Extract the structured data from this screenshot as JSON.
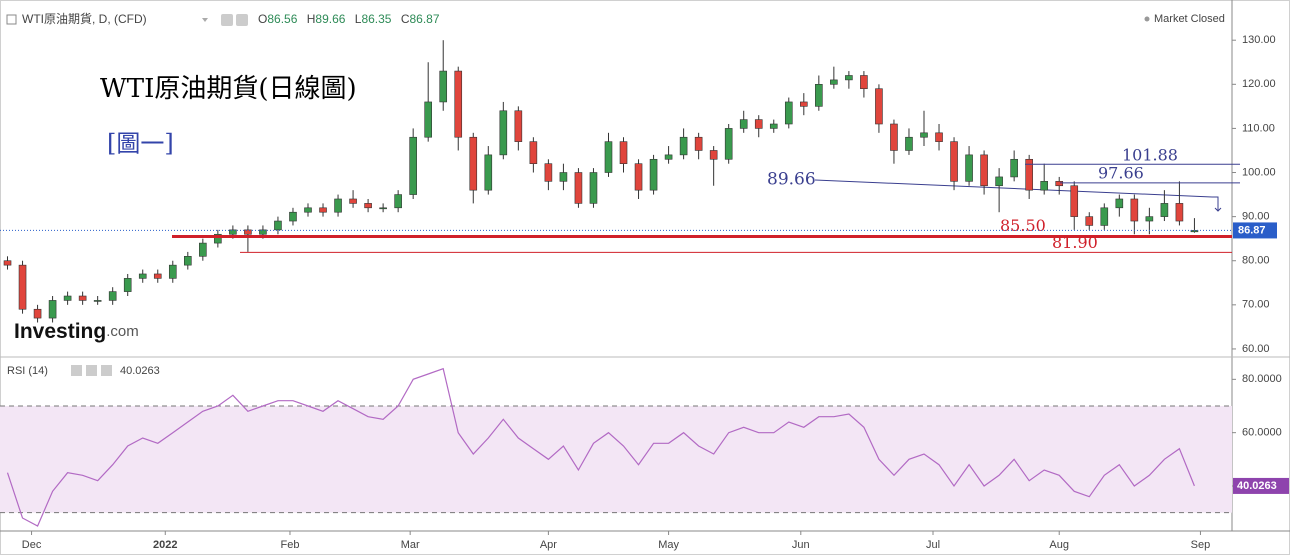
{
  "header": {
    "symbol": "WTI原油期貨, D, (CFD)",
    "ohlc_labels": [
      "O",
      "H",
      "L",
      "C"
    ],
    "status": "Market Closed"
  },
  "logo": {
    "name": "Investing",
    "suffix": ".com"
  },
  "chart_data": [
    {
      "type": "candlestick",
      "title": "WTI原油期貨(日線圖)",
      "subtitle": "[圖一]",
      "x": [
        0,
        1,
        2,
        3,
        4,
        5,
        6,
        7,
        8,
        9,
        10,
        11,
        12,
        13,
        14,
        15,
        16,
        17,
        18,
        19,
        20,
        21,
        22,
        23,
        24,
        25,
        26,
        27,
        28,
        29,
        30,
        31,
        32,
        33,
        34,
        35,
        36,
        37,
        38,
        39,
        40,
        41,
        42,
        43,
        44,
        45,
        46,
        47,
        48,
        49,
        50,
        51,
        52,
        53,
        54,
        55,
        56,
        57,
        58,
        59,
        60,
        61,
        62,
        63,
        64,
        65,
        66,
        67,
        68,
        69,
        70,
        71,
        72,
        73,
        74,
        75,
        76,
        77,
        78,
        79
      ],
      "open": [
        80,
        79,
        69,
        67,
        71,
        72,
        71,
        71,
        73,
        76,
        77,
        76,
        79,
        81,
        84,
        86,
        87,
        86,
        87,
        89,
        91,
        92,
        91,
        94,
        93,
        92,
        92,
        95,
        108,
        116,
        123,
        108,
        96,
        104,
        114,
        107,
        102,
        98,
        100,
        93,
        100,
        107,
        102,
        96,
        103,
        104,
        108,
        105,
        103,
        110,
        112,
        110,
        111,
        116,
        115,
        120,
        121,
        122,
        119,
        111,
        105,
        108,
        109,
        107,
        98,
        104,
        97,
        99,
        103,
        96,
        98,
        97,
        90,
        88,
        92,
        94,
        89,
        90,
        93,
        86.56
      ],
      "high": [
        81,
        80,
        70,
        72,
        73,
        73,
        72,
        74,
        77,
        78,
        78,
        80,
        82,
        85,
        87,
        88,
        88,
        88,
        90,
        92,
        93,
        93,
        95,
        96,
        94,
        93,
        96,
        110,
        125,
        130,
        124,
        109,
        106,
        116,
        115,
        108,
        103,
        102,
        101,
        101,
        109,
        108,
        103,
        104,
        106,
        110,
        109,
        106,
        111,
        114,
        113,
        112,
        117,
        118,
        122,
        124,
        123,
        123,
        120,
        112,
        110,
        114,
        111,
        108,
        106,
        105,
        101,
        105,
        104,
        102,
        99,
        98,
        91,
        93,
        95,
        95,
        92,
        96,
        98,
        89.66
      ],
      "low": [
        78,
        68,
        66,
        66,
        70,
        70,
        70,
        70,
        72,
        75,
        75,
        75,
        78,
        80,
        83,
        85,
        82,
        85,
        86,
        88,
        90,
        90,
        90,
        92,
        91,
        91,
        91,
        94,
        107,
        114,
        105,
        93,
        95,
        103,
        105,
        100,
        96,
        96,
        92,
        92,
        99,
        100,
        94,
        95,
        102,
        103,
        103,
        97,
        102,
        109,
        108,
        109,
        110,
        113,
        114,
        119,
        119,
        117,
        109,
        102,
        104,
        106,
        105,
        96,
        97,
        95,
        91,
        98,
        94,
        95,
        95,
        87,
        87,
        87,
        90,
        86,
        86,
        89,
        88,
        86.35
      ],
      "close": [
        79,
        69,
        67,
        71,
        72,
        71,
        71,
        73,
        76,
        77,
        76,
        79,
        81,
        84,
        86,
        87,
        86,
        87,
        89,
        91,
        92,
        91,
        94,
        93,
        92,
        92,
        95,
        108,
        116,
        123,
        108,
        96,
        104,
        114,
        107,
        102,
        98,
        100,
        93,
        100,
        107,
        102,
        96,
        103,
        104,
        108,
        105,
        103,
        110,
        112,
        110,
        111,
        116,
        115,
        120,
        121,
        122,
        119,
        111,
        105,
        108,
        109,
        107,
        98,
        104,
        97,
        99,
        103,
        96,
        98,
        97,
        90,
        88,
        92,
        94,
        89,
        90,
        93,
        89,
        86.87
      ],
      "up_color": "#3a9a4e",
      "down_color": "#e0453c",
      "xlim": [
        -0.5,
        81.5
      ],
      "xticks": [
        {
          "value": 1.6,
          "label": "Dec"
        },
        {
          "value": 10.5,
          "label": "2022"
        },
        {
          "value": 18.8,
          "label": "Feb"
        },
        {
          "value": 26.8,
          "label": "Mar"
        },
        {
          "value": 36,
          "label": "Apr"
        },
        {
          "value": 44,
          "label": "May"
        },
        {
          "value": 52.8,
          "label": "Jun"
        },
        {
          "value": 61.6,
          "label": "Jul"
        },
        {
          "value": 70,
          "label": "Aug"
        },
        {
          "value": 79.4,
          "label": "Sep"
        }
      ],
      "ylim": [
        58.4,
        137.3
      ],
      "yticks": [
        {
          "value": 60,
          "label": "60.00"
        },
        {
          "value": 70,
          "label": "70.00"
        },
        {
          "value": 80,
          "label": "80.00"
        },
        {
          "value": 90,
          "label": "90.00"
        },
        {
          "value": 100,
          "label": "100.00"
        },
        {
          "value": 110,
          "label": "110.00"
        },
        {
          "value": 120,
          "label": "120.00"
        },
        {
          "value": 130,
          "label": "130.00"
        }
      ],
      "annotations": [
        {
          "value": 101.88,
          "label": "101.88",
          "color": "#3a3f8f"
        },
        {
          "value": 97.66,
          "label": "97.66",
          "color": "#3a3f8f"
        },
        {
          "value": 85.5,
          "label": "85.50",
          "color": "#d0202a"
        },
        {
          "value": 81.9,
          "label": "81.90",
          "color": "#d0202a"
        }
      ],
      "trendline_label": "89.66",
      "last_price_color": "#2a5ec9"
    },
    {
      "type": "line",
      "title": "RSI (14)",
      "color": "#b26ac4",
      "values": [
        45,
        28,
        25,
        38,
        45,
        44,
        42,
        48,
        55,
        58,
        56,
        60,
        64,
        68,
        70,
        74,
        68,
        70,
        72,
        72,
        70,
        68,
        72,
        69,
        66,
        65,
        70,
        80,
        82,
        84,
        60,
        52,
        58,
        65,
        58,
        54,
        50,
        55,
        46,
        56,
        60,
        55,
        48,
        56,
        56,
        60,
        55,
        52,
        60,
        62,
        60,
        60,
        64,
        62,
        66,
        66,
        67,
        62,
        50,
        44,
        50,
        52,
        48,
        40,
        48,
        40,
        44,
        50,
        42,
        46,
        44,
        38,
        36,
        44,
        48,
        40,
        44,
        50,
        54,
        40.0263
      ],
      "ylim": [
        23.5,
        88
      ],
      "yticks": [
        {
          "value": 40,
          "label": "40.0000"
        },
        {
          "value": 60,
          "label": "60.0000"
        },
        {
          "value": 80,
          "label": "80.0000"
        }
      ],
      "bands": [
        30,
        70
      ],
      "band_color": "#f3e6f5"
    }
  ]
}
